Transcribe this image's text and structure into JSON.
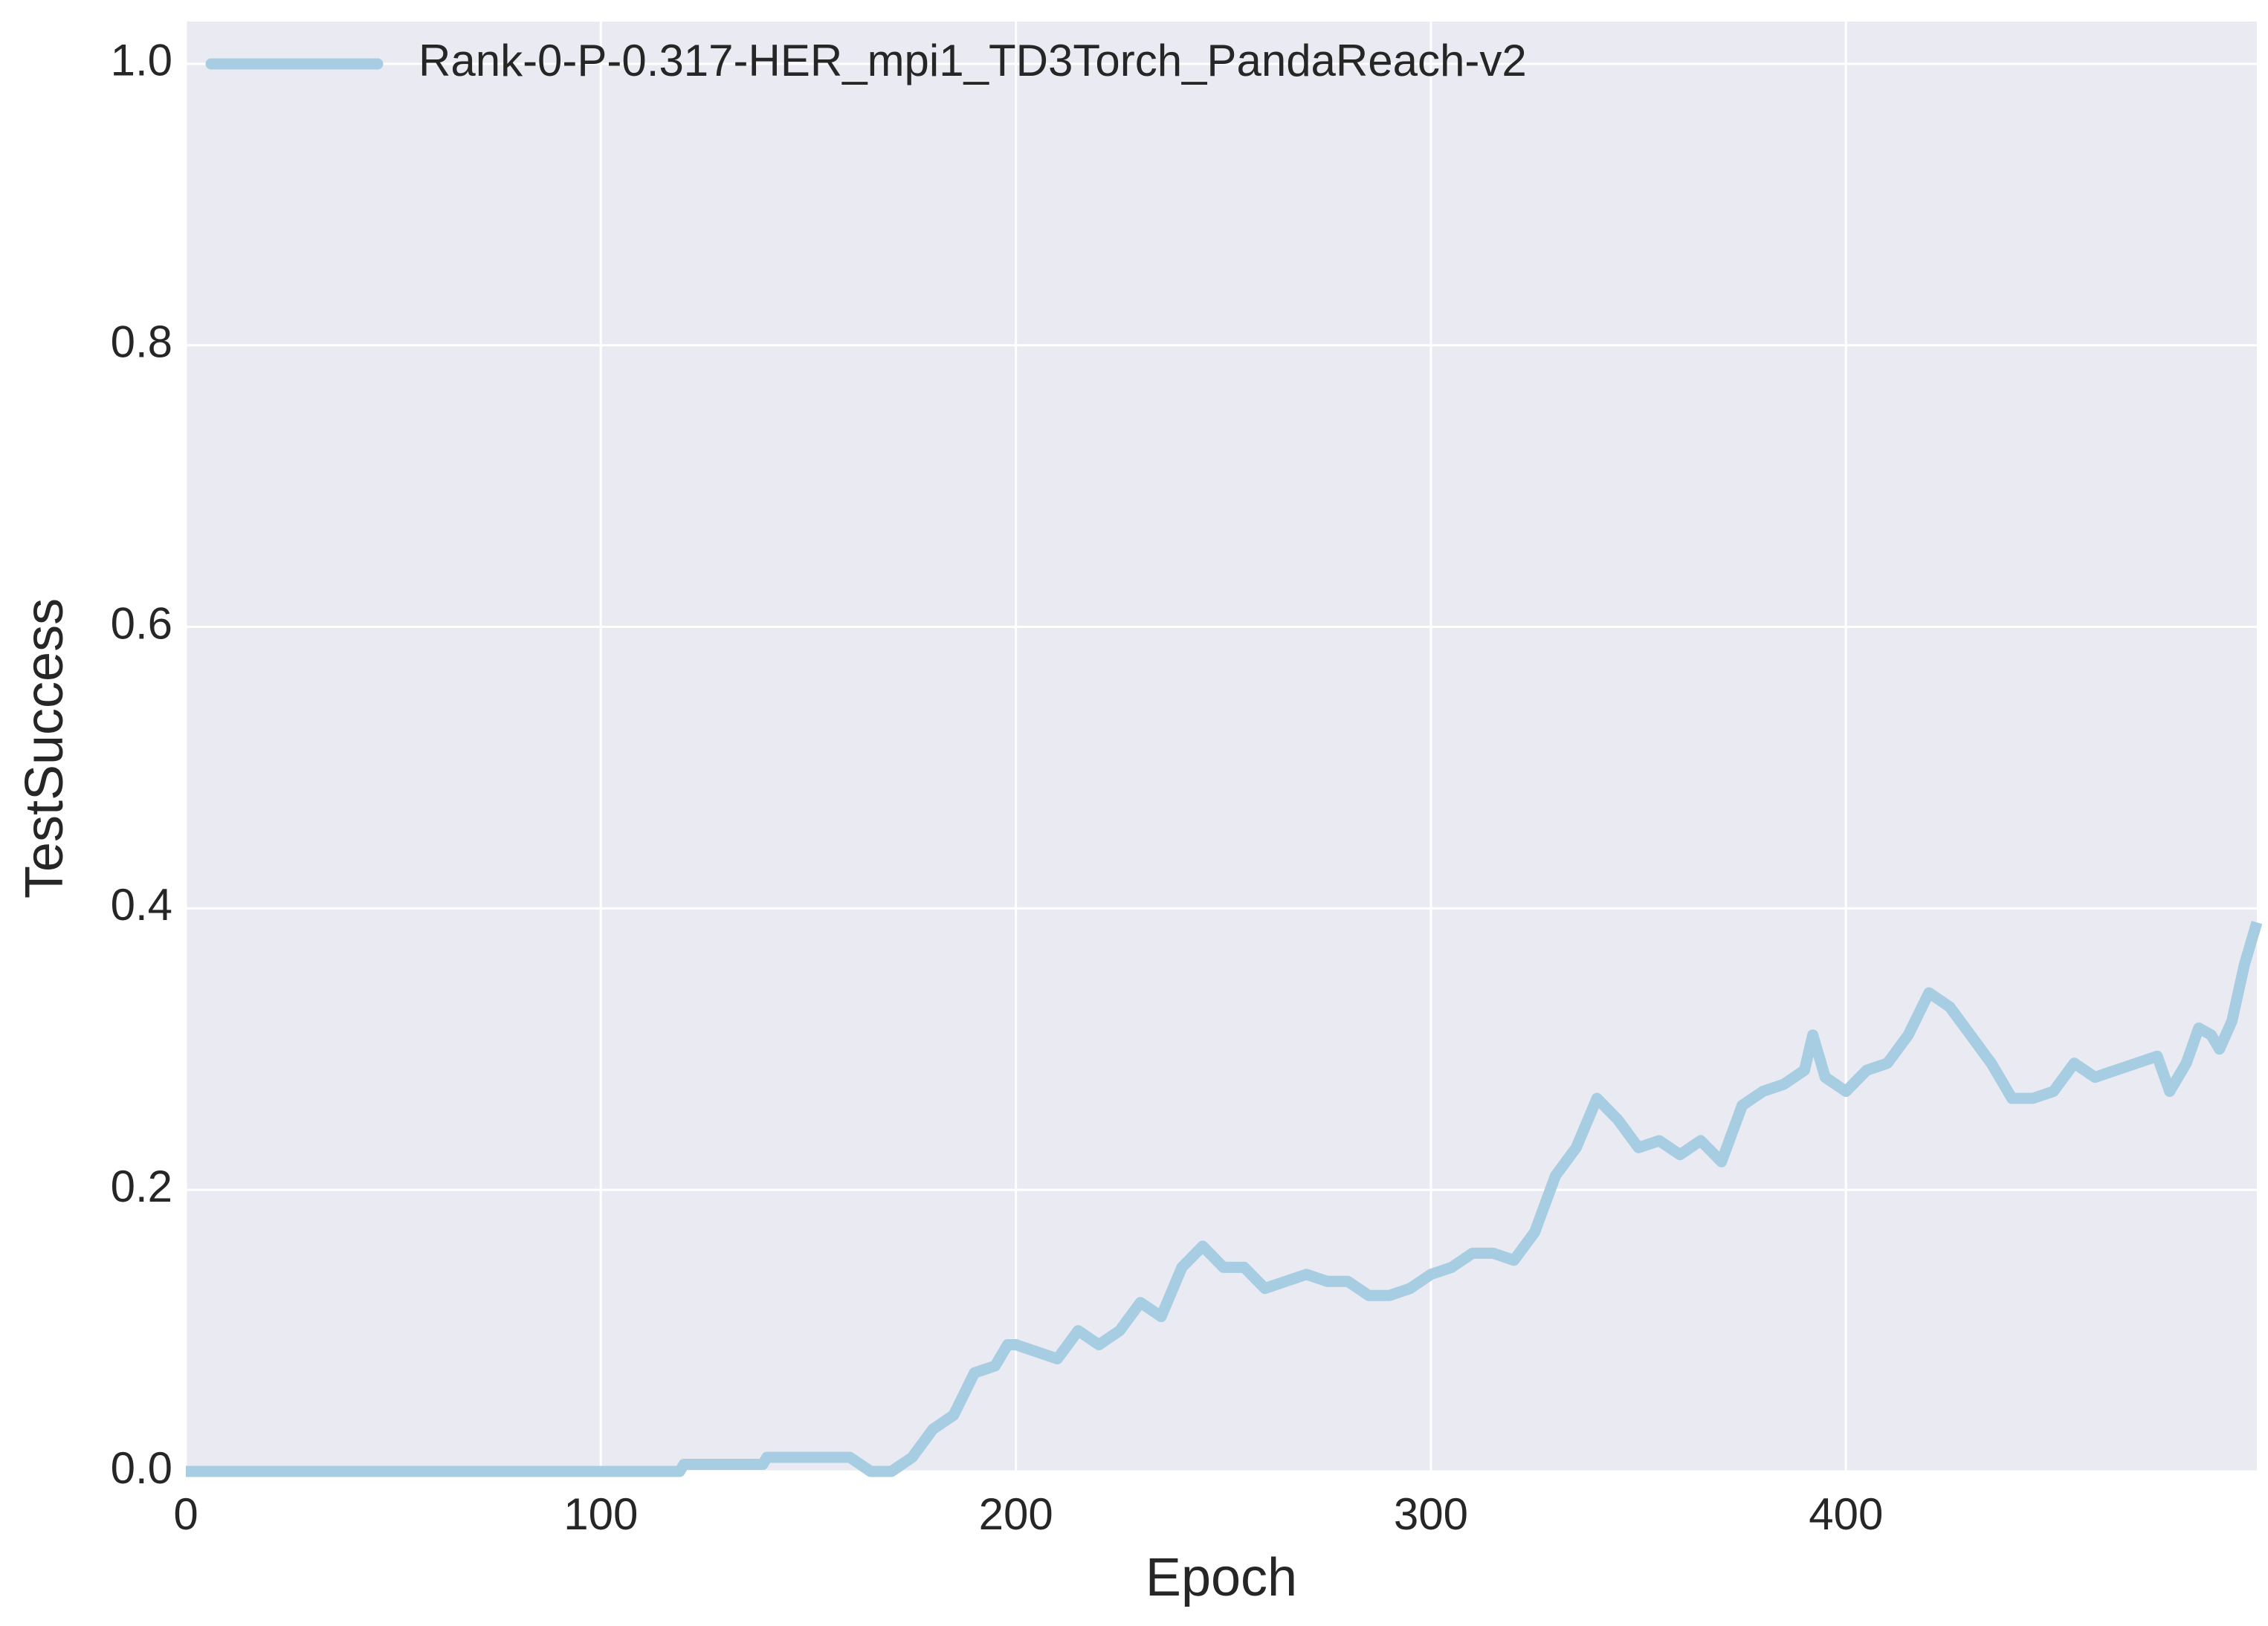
{
  "chart_data": {
    "type": "line",
    "xlabel": "Epoch",
    "ylabel": "TestSuccess",
    "x": [
      0,
      20,
      40,
      60,
      80,
      100,
      119,
      120,
      130,
      139,
      140,
      150,
      160,
      165,
      170,
      175,
      180,
      185,
      190,
      195,
      198,
      200,
      205,
      210,
      215,
      220,
      225,
      230,
      235,
      240,
      245,
      250,
      255,
      260,
      265,
      270,
      275,
      280,
      285,
      290,
      295,
      300,
      305,
      310,
      315,
      320,
      325,
      330,
      335,
      340,
      345,
      350,
      355,
      360,
      365,
      370,
      375,
      380,
      385,
      390,
      392,
      395,
      400,
      405,
      410,
      415,
      420,
      425,
      430,
      435,
      440,
      445,
      450,
      455,
      460,
      465,
      470,
      475,
      478,
      482,
      485,
      488,
      490,
      493,
      496,
      499
    ],
    "series": [
      {
        "name": "Rank-0-P-0.317-HER_mpi1_TD3Torch_PandaReach-v2",
        "color": "#a6cde2",
        "values": [
          0,
          0,
          0,
          0,
          0,
          0,
          0,
          0.005,
          0.005,
          0.005,
          0.01,
          0.01,
          0.01,
          0,
          0,
          0.01,
          0.03,
          0.04,
          0.07,
          0.075,
          0.09,
          0.09,
          0.085,
          0.08,
          0.1,
          0.09,
          0.1,
          0.12,
          0.11,
          0.145,
          0.16,
          0.145,
          0.145,
          0.13,
          0.135,
          0.14,
          0.135,
          0.135,
          0.125,
          0.125,
          0.13,
          0.14,
          0.145,
          0.155,
          0.155,
          0.15,
          0.17,
          0.21,
          0.23,
          0.265,
          0.25,
          0.23,
          0.235,
          0.225,
          0.235,
          0.22,
          0.26,
          0.27,
          0.275,
          0.285,
          0.31,
          0.28,
          0.27,
          0.285,
          0.29,
          0.31,
          0.34,
          0.33,
          0.31,
          0.29,
          0.265,
          0.265,
          0.27,
          0.29,
          0.28,
          0.285,
          0.29,
          0.295,
          0.27,
          0.29,
          0.315,
          0.31,
          0.3,
          0.32,
          0.36,
          0.39
        ]
      }
    ],
    "xlim": [
      0,
      499
    ],
    "ylim": [
      0,
      1.03
    ],
    "xticks": [
      0,
      100,
      200,
      300,
      400
    ],
    "yticks": [
      {
        "value": 0,
        "label": "0.0"
      },
      0.2,
      0.4,
      0.6,
      0.8,
      {
        "value": 1,
        "label": "1.0"
      }
    ],
    "grid": true,
    "legend": "upper left"
  }
}
